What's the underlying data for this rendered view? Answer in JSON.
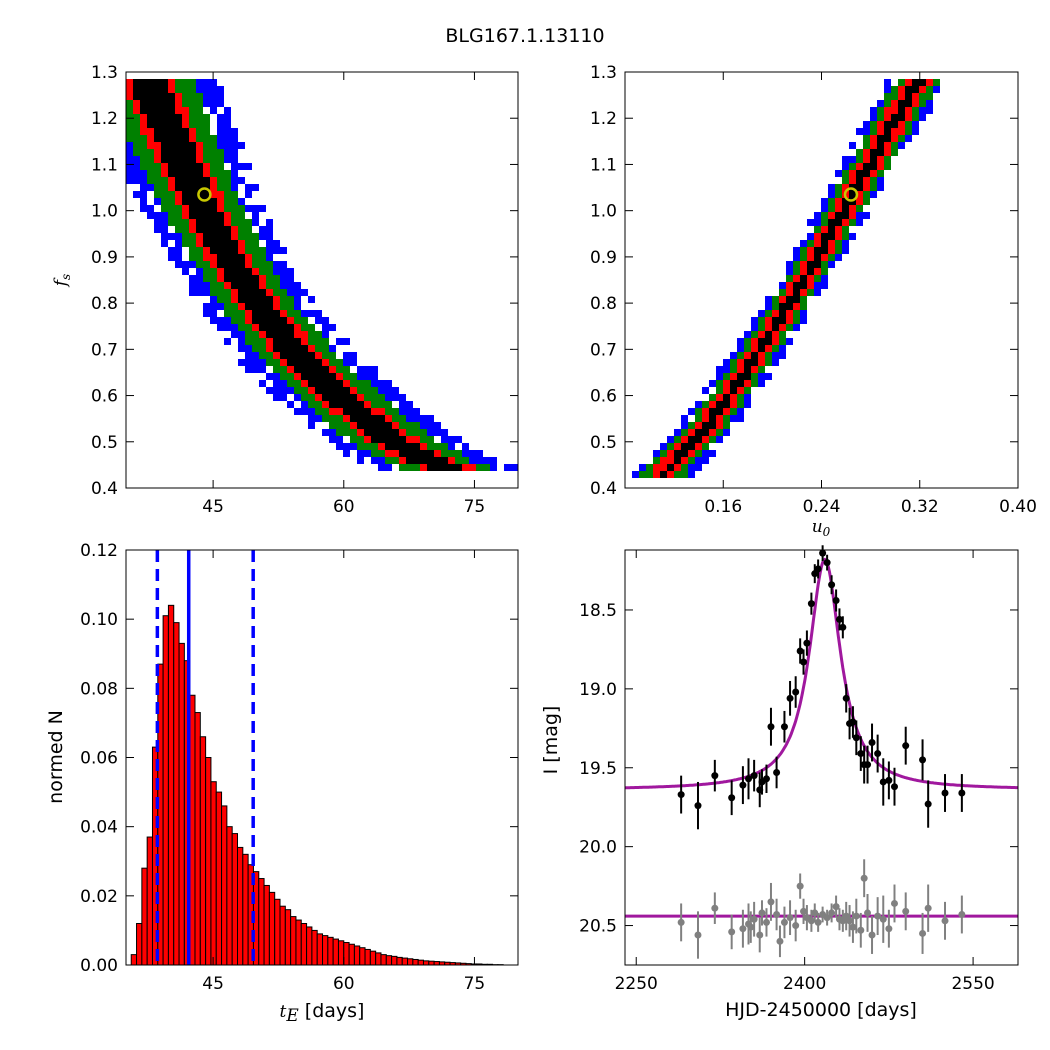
{
  "figure": {
    "title": "BLG167.1.13110"
  },
  "chart_data": [
    {
      "id": "fs-vs-tE",
      "type": "heatmap",
      "title": "",
      "xlabel": "",
      "ylabel": "f_s",
      "ylabel_base": "f",
      "ylabel_sub": "s",
      "xlim": [
        35,
        80
      ],
      "ylim": [
        0.4,
        1.3
      ],
      "xticks": [
        45,
        60,
        75
      ],
      "yticks": [
        0.4,
        0.5,
        0.6,
        0.7,
        0.8,
        0.9,
        1.0,
        1.1,
        1.2,
        1.3
      ],
      "ytick_labels": [
        "0.4",
        "0.5",
        "0.6",
        "0.7",
        "0.8",
        "0.9",
        "1.0",
        "1.1",
        "1.2",
        "1.3"
      ],
      "confidence_colors": [
        "#000000",
        "#ff0000",
        "#008000",
        "#0000ff"
      ],
      "ridge": [
        [
          37.5,
          1.28
        ],
        [
          40,
          1.17
        ],
        [
          42.5,
          1.06
        ],
        [
          45,
          0.96
        ],
        [
          47.5,
          0.875
        ],
        [
          50,
          0.8
        ],
        [
          52.5,
          0.74
        ],
        [
          55,
          0.68
        ],
        [
          57.5,
          0.635
        ],
        [
          60,
          0.59
        ],
        [
          62.5,
          0.55
        ],
        [
          65,
          0.51
        ],
        [
          67.5,
          0.48
        ],
        [
          70,
          0.455
        ],
        [
          72.5,
          0.44
        ],
        [
          76,
          0.43
        ]
      ],
      "ridge_width": [
        1.7,
        2.5,
        4.2,
        6.5
      ],
      "best_fit": {
        "x": 44,
        "y": 1.035
      }
    },
    {
      "id": "fs-vs-u0",
      "type": "heatmap",
      "title": "",
      "xlabel": "u_0",
      "xlabel_base": "u",
      "xlabel_sub": "0",
      "ylabel": "",
      "xlim": [
        0.08,
        0.4
      ],
      "ylim": [
        0.4,
        1.3
      ],
      "xticks": [
        0.16,
        0.24,
        0.32,
        0.4
      ],
      "xtick_labels": [
        "0.16",
        "0.24",
        "0.32",
        "0.40"
      ],
      "yticks": [
        0.4,
        0.5,
        0.6,
        0.7,
        0.8,
        0.9,
        1.0,
        1.1,
        1.2,
        1.3
      ],
      "ytick_labels": [
        "0.4",
        "0.5",
        "0.6",
        "0.7",
        "0.8",
        "0.9",
        "1.0",
        "1.1",
        "1.2",
        "1.3"
      ],
      "confidence_colors": [
        "#000000",
        "#ff0000",
        "#008000",
        "#0000ff"
      ],
      "ridge": [
        [
          0.108,
          0.42
        ],
        [
          0.14,
          0.51
        ],
        [
          0.17,
          0.62
        ],
        [
          0.2,
          0.74
        ],
        [
          0.23,
          0.87
        ],
        [
          0.26,
          1.01
        ],
        [
          0.29,
          1.15
        ],
        [
          0.318,
          1.28
        ]
      ],
      "ridge_width": [
        0.004,
        0.009,
        0.014,
        0.02
      ],
      "best_fit": {
        "x": 0.264,
        "y": 1.035
      }
    },
    {
      "id": "tE-histogram",
      "type": "bar",
      "title": "",
      "xlabel": "t_E [days]",
      "xlabel_base": "t",
      "xlabel_sub": "E",
      "xlabel_unit": "[days]",
      "ylabel": "normed N",
      "xlim": [
        35,
        80
      ],
      "ylim": [
        0,
        0.12
      ],
      "xticks": [
        45,
        60,
        75
      ],
      "yticks": [
        0.0,
        0.02,
        0.04,
        0.06,
        0.08,
        0.1,
        0.12
      ],
      "ytick_labels": [
        "0.00",
        "0.02",
        "0.04",
        "0.06",
        "0.08",
        "0.10",
        "0.12"
      ],
      "bin_start": 35.6,
      "bin_width": 0.61,
      "values": [
        0.003,
        0.012,
        0.028,
        0.037,
        0.063,
        0.087,
        0.101,
        0.104,
        0.099,
        0.093,
        0.088,
        0.078,
        0.073,
        0.066,
        0.06,
        0.053,
        0.05,
        0.046,
        0.04,
        0.038,
        0.034,
        0.032,
        0.029,
        0.027,
        0.025,
        0.023,
        0.021,
        0.019,
        0.017,
        0.016,
        0.014,
        0.013,
        0.012,
        0.011,
        0.01,
        0.009,
        0.0085,
        0.008,
        0.0075,
        0.007,
        0.0065,
        0.006,
        0.0055,
        0.005,
        0.0045,
        0.004,
        0.0035,
        0.003,
        0.0027,
        0.0025,
        0.0022,
        0.002,
        0.0018,
        0.0016,
        0.0014,
        0.0012,
        0.0011,
        0.001,
        0.0009,
        0.0008,
        0.0007,
        0.0006,
        0.0005,
        0.0004,
        0.0003,
        0.0003,
        0.0002,
        0.0002,
        0.0001,
        0.0001
      ],
      "bar_color": "#ff0000",
      "median": 42.2,
      "interval": [
        38.6,
        49.6
      ],
      "line_color": "#0000ff"
    },
    {
      "id": "light-curve",
      "type": "scatter",
      "title": "",
      "xlabel": "HJD-2450000 [days]",
      "ylabel": "I [mag]",
      "xlim": [
        2240,
        2590
      ],
      "ylim": [
        20.75,
        18.12
      ],
      "xticks": [
        2250,
        2400,
        2550
      ],
      "yticks": [
        18.5,
        19.0,
        19.5,
        20.0,
        20.5
      ],
      "ytick_labels": [
        "18.5",
        "19.0",
        "19.5",
        "20.0",
        "20.5"
      ],
      "model": {
        "t0": 2418,
        "baseline": 19.64,
        "peak": 18.18,
        "tau": 17
      },
      "residual_baseline": 20.44,
      "model_color": "#a0189e",
      "data_color": "#000000",
      "residual_color": "#808080",
      "points": [
        [
          2290,
          19.67,
          0.12
        ],
        [
          2305,
          19.74,
          0.15
        ],
        [
          2320,
          19.55,
          0.1
        ],
        [
          2335,
          19.69,
          0.11
        ],
        [
          2345,
          19.61,
          0.12
        ],
        [
          2350,
          19.57,
          0.13
        ],
        [
          2355,
          19.55,
          0.1
        ],
        [
          2360,
          19.64,
          0.11
        ],
        [
          2362,
          19.59,
          0.08
        ],
        [
          2366,
          19.57,
          0.09
        ],
        [
          2370,
          19.24,
          0.12
        ],
        [
          2375,
          19.53,
          0.1
        ],
        [
          2382,
          19.24,
          0.1
        ],
        [
          2387,
          19.06,
          0.11
        ],
        [
          2392,
          19.02,
          0.1
        ],
        [
          2396,
          18.76,
          0.08
        ],
        [
          2399,
          18.83,
          0.08
        ],
        [
          2402,
          18.71,
          0.08
        ],
        [
          2406,
          18.46,
          0.07
        ],
        [
          2409,
          18.27,
          0.06
        ],
        [
          2412,
          18.24,
          0.06
        ],
        [
          2416,
          18.14,
          0.05
        ],
        [
          2420,
          18.2,
          0.05
        ],
        [
          2424,
          18.34,
          0.06
        ],
        [
          2428,
          18.44,
          0.07
        ],
        [
          2431,
          18.56,
          0.07
        ],
        [
          2434,
          18.61,
          0.07
        ],
        [
          2437,
          19.06,
          0.09
        ],
        [
          2440,
          19.22,
          0.1
        ],
        [
          2443,
          19.21,
          0.1
        ],
        [
          2446,
          19.31,
          0.11
        ],
        [
          2450,
          19.41,
          0.11
        ],
        [
          2453,
          19.48,
          0.12
        ],
        [
          2456,
          19.48,
          0.12
        ],
        [
          2460,
          19.34,
          0.12
        ],
        [
          2465,
          19.41,
          0.12
        ],
        [
          2470,
          19.59,
          0.15
        ],
        [
          2475,
          19.58,
          0.12
        ],
        [
          2480,
          19.62,
          0.12
        ],
        [
          2490,
          19.36,
          0.12
        ],
        [
          2505,
          19.45,
          0.13
        ],
        [
          2510,
          19.73,
          0.15
        ],
        [
          2525,
          19.66,
          0.12
        ],
        [
          2540,
          19.66,
          0.12
        ]
      ],
      "residuals": [
        [
          2290,
          20.48,
          0.12
        ],
        [
          2305,
          20.56,
          0.15
        ],
        [
          2320,
          20.39,
          0.1
        ],
        [
          2335,
          20.54,
          0.11
        ],
        [
          2345,
          20.52,
          0.12
        ],
        [
          2350,
          20.49,
          0.13
        ],
        [
          2352,
          20.51,
          0.1
        ],
        [
          2355,
          20.46,
          0.11
        ],
        [
          2360,
          20.56,
          0.11
        ],
        [
          2362,
          20.42,
          0.08
        ],
        [
          2366,
          20.48,
          0.09
        ],
        [
          2370,
          20.35,
          0.12
        ],
        [
          2375,
          20.43,
          0.1
        ],
        [
          2378,
          20.6,
          0.1
        ],
        [
          2382,
          20.48,
          0.1
        ],
        [
          2387,
          20.45,
          0.11
        ],
        [
          2392,
          20.5,
          0.1
        ],
        [
          2396,
          20.25,
          0.08
        ],
        [
          2399,
          20.41,
          0.08
        ],
        [
          2402,
          20.45,
          0.08
        ],
        [
          2406,
          20.47,
          0.07
        ],
        [
          2409,
          20.42,
          0.06
        ],
        [
          2412,
          20.48,
          0.06
        ],
        [
          2416,
          20.43,
          0.05
        ],
        [
          2420,
          20.45,
          0.05
        ],
        [
          2424,
          20.42,
          0.06
        ],
        [
          2428,
          20.38,
          0.07
        ],
        [
          2431,
          20.46,
          0.07
        ],
        [
          2434,
          20.47,
          0.07
        ],
        [
          2437,
          20.44,
          0.09
        ],
        [
          2440,
          20.47,
          0.1
        ],
        [
          2443,
          20.51,
          0.1
        ],
        [
          2446,
          20.44,
          0.11
        ],
        [
          2450,
          20.53,
          0.11
        ],
        [
          2453,
          20.2,
          0.12
        ],
        [
          2456,
          20.42,
          0.12
        ],
        [
          2460,
          20.56,
          0.12
        ],
        [
          2465,
          20.44,
          0.12
        ],
        [
          2470,
          20.46,
          0.15
        ],
        [
          2475,
          20.52,
          0.12
        ],
        [
          2480,
          20.36,
          0.12
        ],
        [
          2490,
          20.41,
          0.12
        ],
        [
          2505,
          20.55,
          0.13
        ],
        [
          2510,
          20.39,
          0.15
        ],
        [
          2525,
          20.47,
          0.12
        ],
        [
          2540,
          20.43,
          0.12
        ]
      ]
    }
  ]
}
